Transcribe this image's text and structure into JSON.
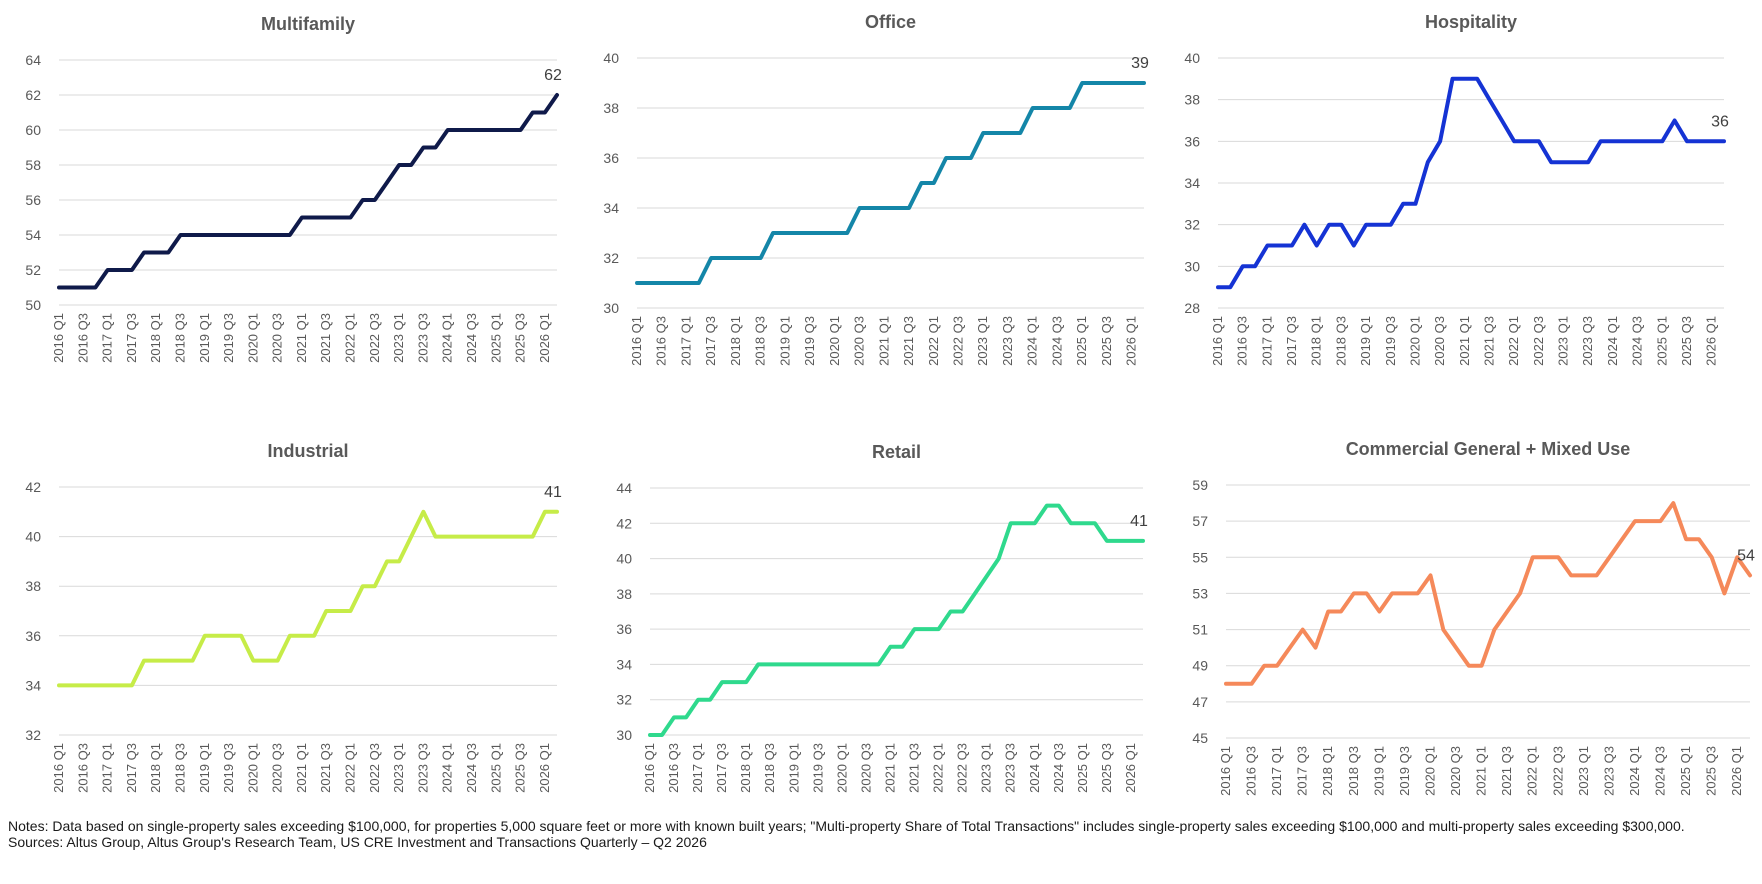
{
  "chart_data": [
    {
      "type": "line",
      "title": "Multifamily",
      "color": "#0f1a4a",
      "ylim": [
        50,
        64
      ],
      "yticks": [
        50,
        52,
        54,
        56,
        58,
        60,
        62,
        64
      ],
      "categories": [
        "2016 Q1",
        "2016 Q2",
        "2016 Q3",
        "2016 Q4",
        "2017 Q1",
        "2017 Q2",
        "2017 Q3",
        "2017 Q4",
        "2018 Q1",
        "2018 Q2",
        "2018 Q3",
        "2018 Q4",
        "2019 Q1",
        "2019 Q2",
        "2019 Q3",
        "2019 Q4",
        "2020 Q1",
        "2020 Q2",
        "2020 Q3",
        "2020 Q4",
        "2021 Q1",
        "2021 Q2",
        "2021 Q3",
        "2021 Q4",
        "2022 Q1",
        "2022 Q2",
        "2022 Q3",
        "2022 Q4",
        "2023 Q1",
        "2023 Q2",
        "2023 Q3",
        "2023 Q4",
        "2024 Q1",
        "2024 Q2",
        "2024 Q3",
        "2024 Q4",
        "2025 Q1",
        "2025 Q2",
        "2025 Q3",
        "2025 Q4",
        "2026 Q1",
        "2026 Q2"
      ],
      "tick_labels": [
        "2016 Q1",
        "2016 Q3",
        "2017 Q1",
        "2017 Q3",
        "2018 Q1",
        "2018 Q3",
        "2019 Q1",
        "2019 Q3",
        "2020 Q1",
        "2020 Q3",
        "2021 Q1",
        "2021 Q3",
        "2022 Q1",
        "2022 Q3",
        "2023 Q1",
        "2023 Q3",
        "2024 Q1",
        "2024 Q3",
        "2025 Q1",
        "2025 Q3",
        "2026 Q1"
      ],
      "values": [
        51,
        51,
        51,
        51,
        52,
        52,
        52,
        53,
        53,
        53,
        54,
        54,
        54,
        54,
        54,
        54,
        54,
        54,
        54,
        54,
        55,
        55,
        55,
        55,
        55,
        56,
        56,
        57,
        58,
        58,
        59,
        59,
        60,
        60,
        60,
        60,
        60,
        60,
        60,
        61,
        61,
        62
      ],
      "end_label": "62"
    },
    {
      "type": "line",
      "title": "Office",
      "color": "#1486a8",
      "ylim": [
        30,
        40
      ],
      "yticks": [
        30,
        32,
        34,
        36,
        38,
        40
      ],
      "categories": [
        "2016 Q1",
        "2016 Q2",
        "2016 Q3",
        "2016 Q4",
        "2017 Q1",
        "2017 Q2",
        "2017 Q3",
        "2017 Q4",
        "2018 Q1",
        "2018 Q2",
        "2018 Q3",
        "2018 Q4",
        "2019 Q1",
        "2019 Q2",
        "2019 Q3",
        "2019 Q4",
        "2020 Q1",
        "2020 Q2",
        "2020 Q3",
        "2020 Q4",
        "2021 Q1",
        "2021 Q2",
        "2021 Q3",
        "2021 Q4",
        "2022 Q1",
        "2022 Q2",
        "2022 Q3",
        "2022 Q4",
        "2023 Q1",
        "2023 Q2",
        "2023 Q3",
        "2023 Q4",
        "2024 Q1",
        "2024 Q2",
        "2024 Q3",
        "2024 Q4",
        "2025 Q1",
        "2025 Q2",
        "2025 Q3",
        "2025 Q4",
        "2026 Q1",
        "2026 Q2"
      ],
      "tick_labels": [
        "2016 Q1",
        "2016 Q3",
        "2017 Q1",
        "2017 Q3",
        "2018 Q1",
        "2018 Q3",
        "2019 Q1",
        "2019 Q3",
        "2020 Q1",
        "2020 Q3",
        "2021 Q1",
        "2021 Q3",
        "2022 Q1",
        "2022 Q3",
        "2023 Q1",
        "2023 Q3",
        "2024 Q1",
        "2024 Q3",
        "2025 Q1",
        "2025 Q3",
        "2026 Q1"
      ],
      "values": [
        31,
        31,
        31,
        31,
        31,
        31,
        32,
        32,
        32,
        32,
        32,
        33,
        33,
        33,
        33,
        33,
        33,
        33,
        34,
        34,
        34,
        34,
        34,
        35,
        35,
        36,
        36,
        36,
        37,
        37,
        37,
        37,
        38,
        38,
        38,
        38,
        39,
        39,
        39,
        39,
        39,
        39
      ],
      "end_label": "39"
    },
    {
      "type": "line",
      "title": "Hospitality",
      "color": "#1533d4",
      "ylim": [
        28,
        40
      ],
      "yticks": [
        28,
        30,
        32,
        34,
        36,
        38,
        40
      ],
      "categories": [
        "2016 Q1",
        "2016 Q2",
        "2016 Q3",
        "2016 Q4",
        "2017 Q1",
        "2017 Q2",
        "2017 Q3",
        "2017 Q4",
        "2018 Q1",
        "2018 Q2",
        "2018 Q3",
        "2018 Q4",
        "2019 Q1",
        "2019 Q2",
        "2019 Q3",
        "2019 Q4",
        "2020 Q1",
        "2020 Q2",
        "2020 Q3",
        "2020 Q4",
        "2021 Q1",
        "2021 Q2",
        "2021 Q3",
        "2021 Q4",
        "2022 Q1",
        "2022 Q2",
        "2022 Q3",
        "2022 Q4",
        "2023 Q1",
        "2023 Q2",
        "2023 Q3",
        "2023 Q4",
        "2024 Q1",
        "2024 Q2",
        "2024 Q3",
        "2024 Q4",
        "2025 Q1",
        "2025 Q2",
        "2025 Q3",
        "2025 Q4",
        "2026 Q1",
        "2026 Q2"
      ],
      "tick_labels": [
        "2016 Q1",
        "2016 Q3",
        "2017 Q1",
        "2017 Q3",
        "2018 Q1",
        "2018 Q3",
        "2019 Q1",
        "2019 Q3",
        "2020 Q1",
        "2020 Q3",
        "2021 Q1",
        "2021 Q3",
        "2022 Q1",
        "2022 Q3",
        "2023 Q1",
        "2023 Q3",
        "2024 Q1",
        "2024 Q3",
        "2025 Q1",
        "2025 Q3",
        "2026 Q1"
      ],
      "values": [
        29,
        29,
        30,
        30,
        31,
        31,
        31,
        32,
        31,
        32,
        32,
        31,
        32,
        32,
        32,
        33,
        33,
        35,
        36,
        39,
        39,
        39,
        38,
        37,
        36,
        36,
        36,
        35,
        35,
        35,
        35,
        36,
        36,
        36,
        36,
        36,
        36,
        37,
        36,
        36,
        36,
        36
      ],
      "end_label": "36"
    },
    {
      "type": "line",
      "title": "Industrial",
      "color": "#c6ec48",
      "ylim": [
        32,
        42
      ],
      "yticks": [
        32,
        34,
        36,
        38,
        40,
        42
      ],
      "categories": [
        "2016 Q1",
        "2016 Q2",
        "2016 Q3",
        "2016 Q4",
        "2017 Q1",
        "2017 Q2",
        "2017 Q3",
        "2017 Q4",
        "2018 Q1",
        "2018 Q2",
        "2018 Q3",
        "2018 Q4",
        "2019 Q1",
        "2019 Q2",
        "2019 Q3",
        "2019 Q4",
        "2020 Q1",
        "2020 Q2",
        "2020 Q3",
        "2020 Q4",
        "2021 Q1",
        "2021 Q2",
        "2021 Q3",
        "2021 Q4",
        "2022 Q1",
        "2022 Q2",
        "2022 Q3",
        "2022 Q4",
        "2023 Q1",
        "2023 Q2",
        "2023 Q3",
        "2023 Q4",
        "2024 Q1",
        "2024 Q2",
        "2024 Q3",
        "2024 Q4",
        "2025 Q1",
        "2025 Q2",
        "2025 Q3",
        "2025 Q4",
        "2026 Q1",
        "2026 Q2"
      ],
      "tick_labels": [
        "2016 Q1",
        "2016 Q3",
        "2017 Q1",
        "2017 Q3",
        "2018 Q1",
        "2018 Q3",
        "2019 Q1",
        "2019 Q3",
        "2020 Q1",
        "2020 Q3",
        "2021 Q1",
        "2021 Q3",
        "2022 Q1",
        "2022 Q3",
        "2023 Q1",
        "2023 Q3",
        "2024 Q1",
        "2024 Q3",
        "2025 Q1",
        "2025 Q3",
        "2026 Q1"
      ],
      "values": [
        34,
        34,
        34,
        34,
        34,
        34,
        34,
        35,
        35,
        35,
        35,
        35,
        36,
        36,
        36,
        36,
        35,
        35,
        35,
        36,
        36,
        36,
        37,
        37,
        37,
        38,
        38,
        39,
        39,
        40,
        41,
        40,
        40,
        40,
        40,
        40,
        40,
        40,
        40,
        40,
        41,
        41
      ],
      "end_label": "41"
    },
    {
      "type": "line",
      "title": "Retail",
      "color": "#2fd98d",
      "ylim": [
        30,
        44
      ],
      "yticks": [
        30,
        32,
        34,
        36,
        38,
        40,
        42,
        44
      ],
      "categories": [
        "2016 Q1",
        "2016 Q2",
        "2016 Q3",
        "2016 Q4",
        "2017 Q1",
        "2017 Q2",
        "2017 Q3",
        "2017 Q4",
        "2018 Q1",
        "2018 Q2",
        "2018 Q3",
        "2018 Q4",
        "2019 Q1",
        "2019 Q2",
        "2019 Q3",
        "2019 Q4",
        "2020 Q1",
        "2020 Q2",
        "2020 Q3",
        "2020 Q4",
        "2021 Q1",
        "2021 Q2",
        "2021 Q3",
        "2021 Q4",
        "2022 Q1",
        "2022 Q2",
        "2022 Q3",
        "2022 Q4",
        "2023 Q1",
        "2023 Q2",
        "2023 Q3",
        "2023 Q4",
        "2024 Q1",
        "2024 Q2",
        "2024 Q3",
        "2024 Q4",
        "2025 Q1",
        "2025 Q2",
        "2025 Q3",
        "2025 Q4",
        "2026 Q1",
        "2026 Q2"
      ],
      "tick_labels": [
        "2016 Q1",
        "2016 Q3",
        "2017 Q1",
        "2017 Q3",
        "2018 Q1",
        "2018 Q3",
        "2019 Q1",
        "2019 Q3",
        "2020 Q1",
        "2020 Q3",
        "2021 Q1",
        "2021 Q3",
        "2022 Q1",
        "2022 Q3",
        "2023 Q1",
        "2023 Q3",
        "2024 Q1",
        "2024 Q3",
        "2025 Q1",
        "2025 Q3",
        "2026 Q1"
      ],
      "values": [
        30,
        30,
        31,
        31,
        32,
        32,
        33,
        33,
        33,
        34,
        34,
        34,
        34,
        34,
        34,
        34,
        34,
        34,
        34,
        34,
        35,
        35,
        36,
        36,
        36,
        37,
        37,
        38,
        39,
        40,
        42,
        42,
        42,
        43,
        43,
        42,
        42,
        42,
        41,
        41,
        41,
        41
      ],
      "end_label": "41"
    },
    {
      "type": "line",
      "title": "Commercial General + Mixed Use",
      "color": "#f5895a",
      "ylim": [
        45,
        59
      ],
      "yticks": [
        45,
        47,
        49,
        51,
        53,
        55,
        57,
        59
      ],
      "categories": [
        "2016 Q1",
        "2016 Q2",
        "2016 Q3",
        "2016 Q4",
        "2017 Q1",
        "2017 Q2",
        "2017 Q3",
        "2017 Q4",
        "2018 Q1",
        "2018 Q2",
        "2018 Q3",
        "2018 Q4",
        "2019 Q1",
        "2019 Q2",
        "2019 Q3",
        "2019 Q4",
        "2020 Q1",
        "2020 Q2",
        "2020 Q3",
        "2020 Q4",
        "2021 Q1",
        "2021 Q2",
        "2021 Q3",
        "2021 Q4",
        "2022 Q1",
        "2022 Q2",
        "2022 Q3",
        "2022 Q4",
        "2023 Q1",
        "2023 Q2",
        "2023 Q3",
        "2023 Q4",
        "2024 Q1",
        "2024 Q2",
        "2024 Q3",
        "2024 Q4",
        "2025 Q1",
        "2025 Q2",
        "2025 Q3",
        "2025 Q4",
        "2026 Q1",
        "2026 Q2"
      ],
      "tick_labels": [
        "2016 Q1",
        "2016 Q3",
        "2017 Q1",
        "2017 Q3",
        "2018 Q1",
        "2018 Q3",
        "2019 Q1",
        "2019 Q3",
        "2020 Q1",
        "2020 Q3",
        "2021 Q1",
        "2021 Q3",
        "2022 Q1",
        "2022 Q3",
        "2023 Q1",
        "2023 Q3",
        "2024 Q1",
        "2024 Q3",
        "2025 Q1",
        "2025 Q3",
        "2026 Q1"
      ],
      "values": [
        48,
        48,
        48,
        49,
        49,
        50,
        51,
        50,
        52,
        52,
        53,
        53,
        52,
        53,
        53,
        53,
        54,
        51,
        50,
        49,
        49,
        51,
        52,
        53,
        55,
        55,
        55,
        54,
        54,
        54,
        55,
        56,
        57,
        57,
        57,
        58,
        56,
        56,
        55,
        53,
        55,
        54
      ],
      "end_label": "54"
    }
  ],
  "notes": {
    "line1": "Notes: Data based on single-property sales exceeding $100,000, for properties 5,000 square feet or more with known built years; \"Multi-property Share of Total Transactions\" includes single-property sales exceeding $100,000 and multi-property sales exceeding $300,000.",
    "line2": "Sources: Altus Group, Altus Group's Research Team, US CRE Investment and Transactions Quarterly – Q2 2026"
  }
}
